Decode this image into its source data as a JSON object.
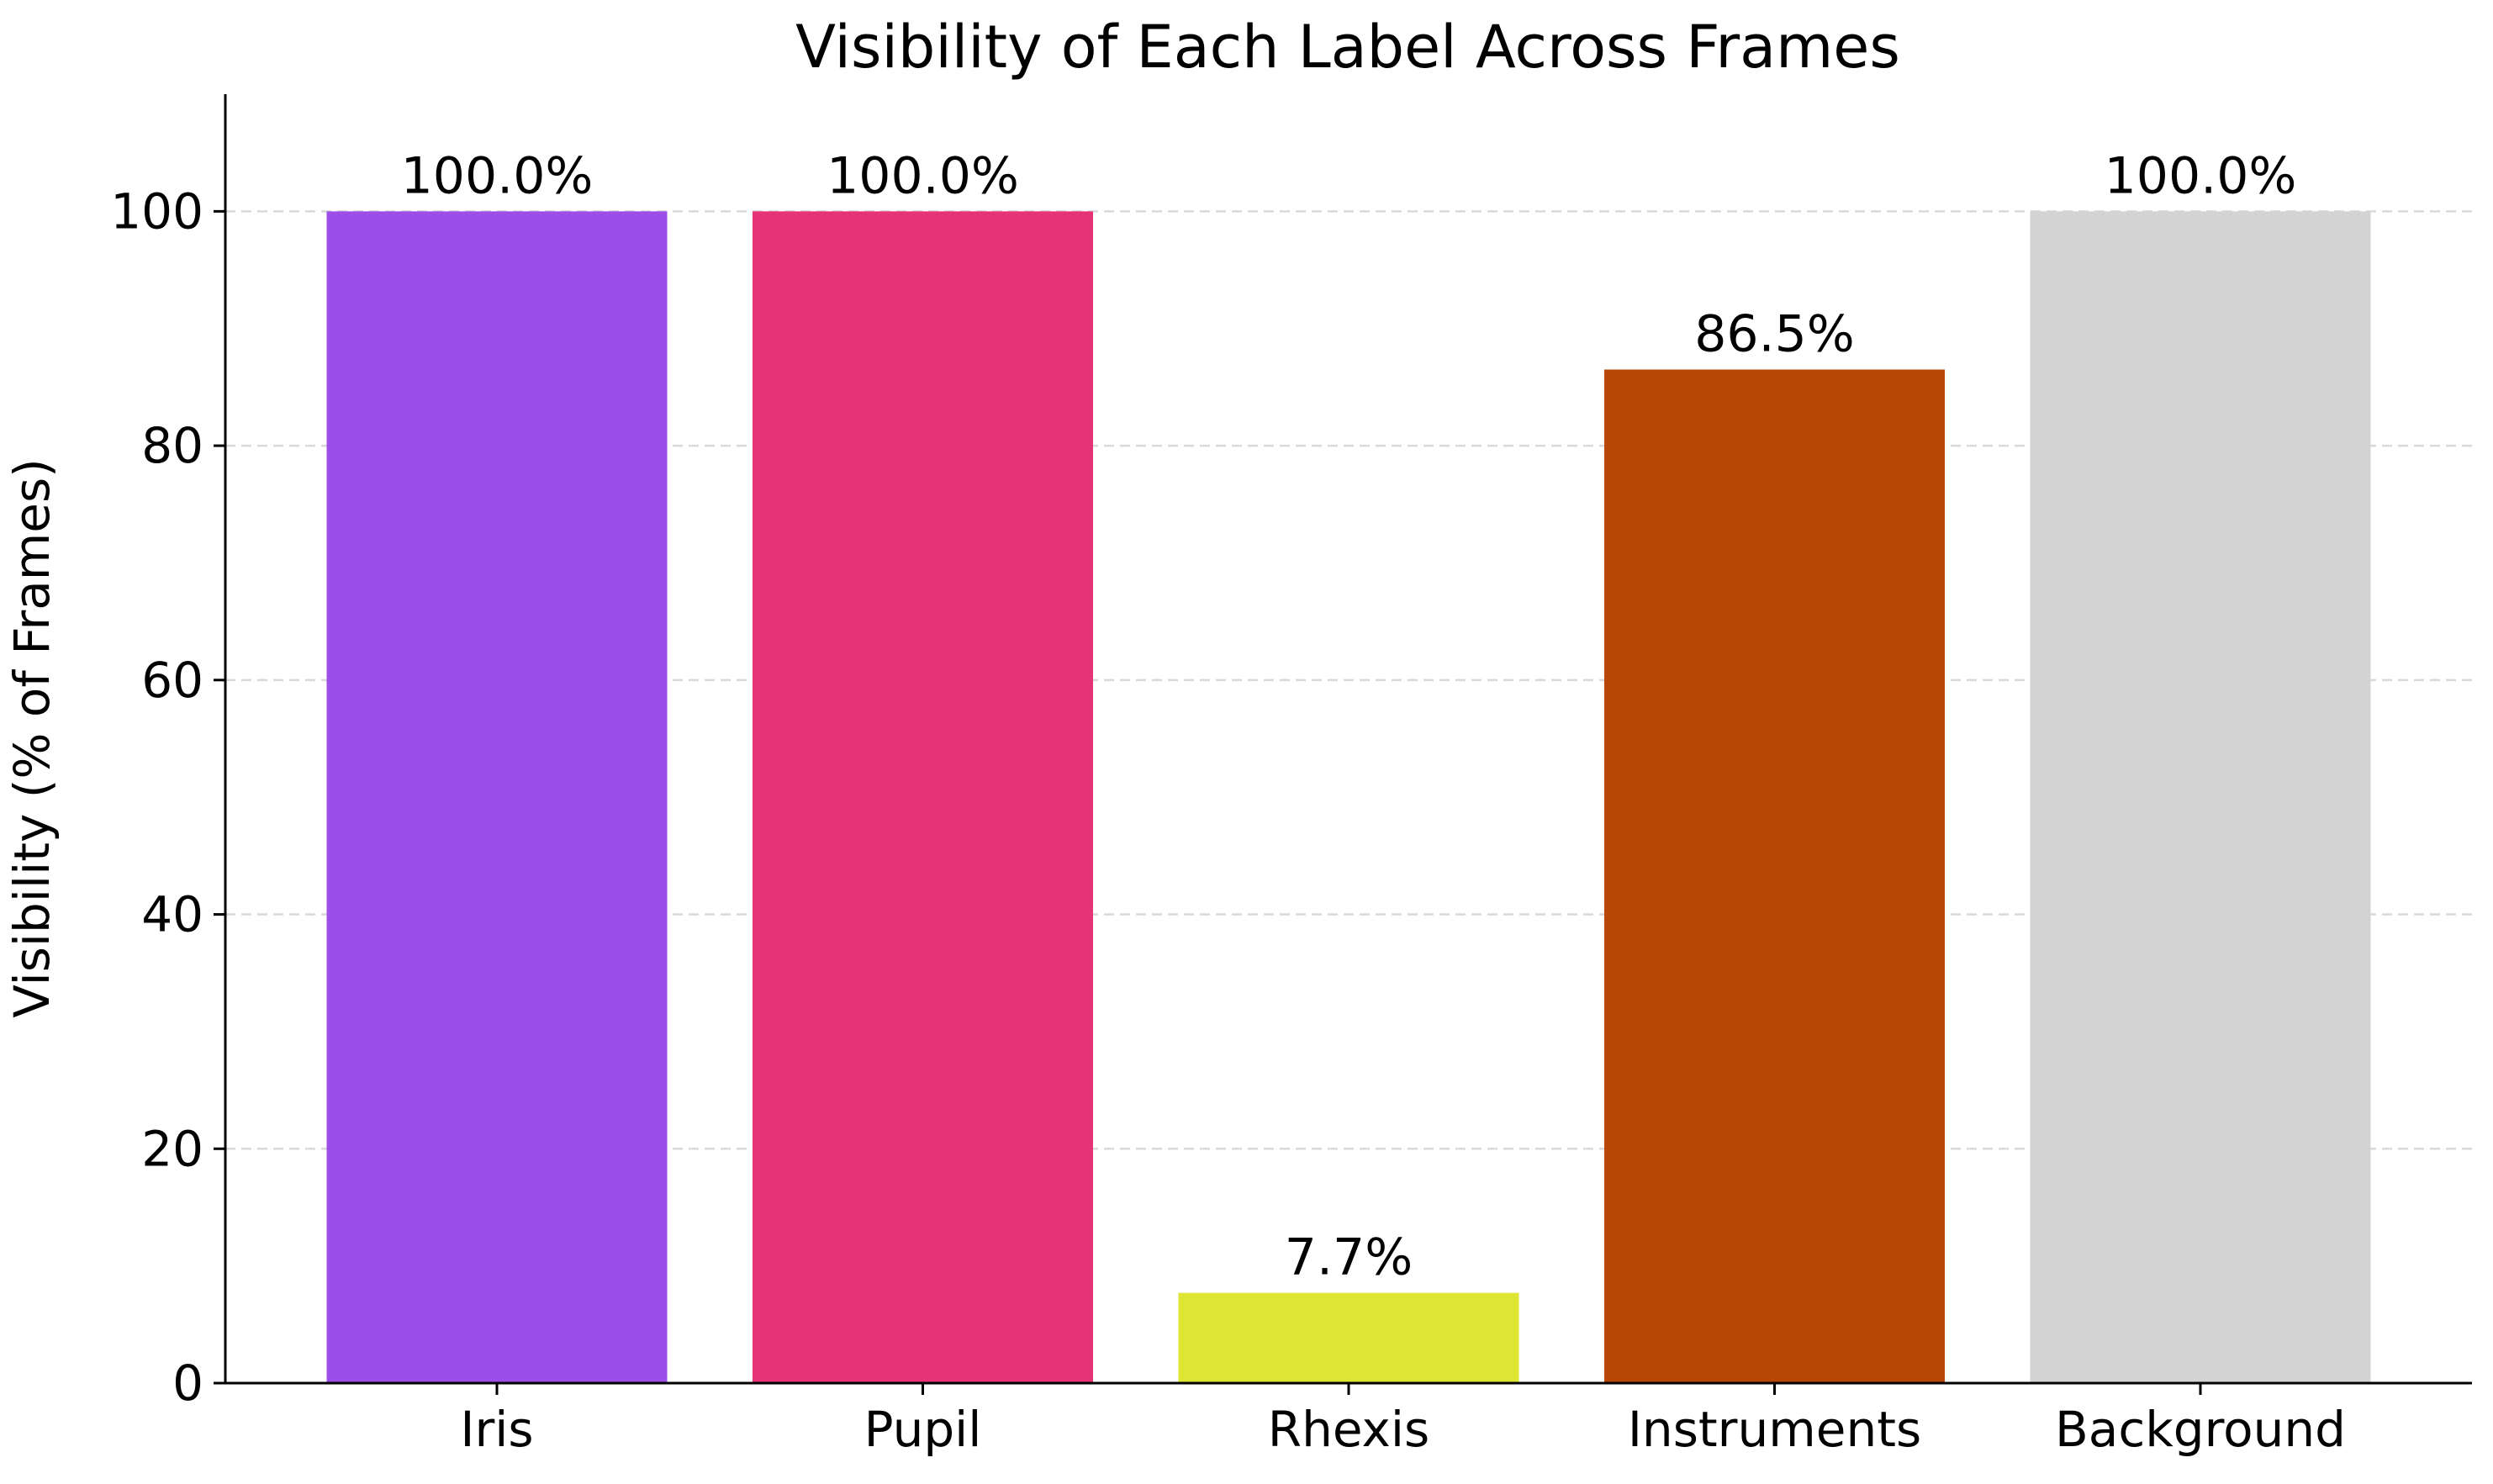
{
  "chart_data": {
    "type": "bar",
    "title": "Visibility of Each Label Across Frames",
    "xlabel": "",
    "ylabel": "Visibility (% of Frames)",
    "categories": [
      "Iris",
      "Pupil",
      "Rhexis",
      "Instruments",
      "Background"
    ],
    "values": [
      100.0,
      100.0,
      7.7,
      86.5,
      100.0
    ],
    "data_labels": [
      "100.0%",
      "100.0%",
      "7.7%",
      "86.5%",
      "100.0%"
    ],
    "colors": [
      "#9b4fe8",
      "#e63375",
      "#dde633",
      "#b84706",
      "#d3d3d3"
    ],
    "ylim": [
      0,
      110
    ],
    "yticks": [
      0,
      20,
      40,
      60,
      80,
      100
    ],
    "grid": "y-dashed",
    "legend": "none"
  }
}
